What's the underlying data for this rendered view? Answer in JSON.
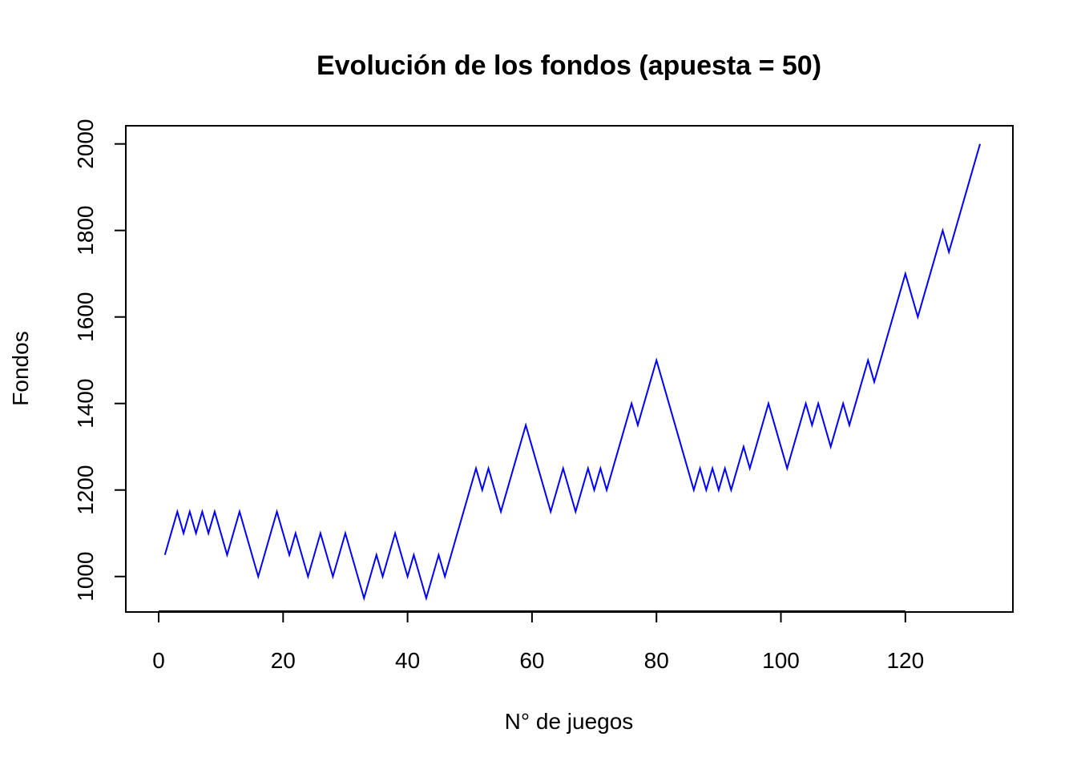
{
  "chart_data": {
    "type": "line",
    "title": "Evolución de los fondos (apuesta = 50)",
    "xlabel": "N° de juegos",
    "ylabel": "Fondos",
    "xlim": [
      -5.28,
      137.28
    ],
    "ylim": [
      918,
      2042
    ],
    "xticks": [
      0,
      20,
      40,
      60,
      80,
      100,
      120
    ],
    "yticks": [
      1000,
      1200,
      1400,
      1600,
      1800,
      2000
    ],
    "grid": false,
    "legend": "none",
    "line_color": "#0000ff",
    "series": [
      {
        "x": [
          1,
          2,
          3,
          4,
          5,
          6,
          7,
          8,
          9,
          10,
          11,
          12,
          13,
          14,
          15,
          16,
          17,
          18,
          19,
          20,
          21,
          22,
          23,
          24,
          25,
          26,
          27,
          28,
          29,
          30,
          31,
          32,
          33,
          34,
          35,
          36,
          37,
          38,
          39,
          40,
          41,
          42,
          43,
          44,
          45,
          46,
          47,
          48,
          49,
          50,
          51,
          52,
          53,
          54,
          55,
          56,
          57,
          58,
          59,
          60,
          61,
          62,
          63,
          64,
          65,
          66,
          67,
          68,
          69,
          70,
          71,
          72,
          73,
          74,
          75,
          76,
          77,
          78,
          79,
          80,
          81,
          82,
          83,
          84,
          85,
          86,
          87,
          88,
          89,
          90,
          91,
          92,
          93,
          94,
          95,
          96,
          97,
          98,
          99,
          100,
          101,
          102,
          103,
          104,
          105,
          106,
          107,
          108,
          109,
          110,
          111,
          112,
          113,
          114,
          115,
          116,
          117,
          118,
          119,
          120,
          121,
          122,
          123,
          124,
          125,
          126,
          127,
          128,
          129,
          130,
          131,
          132
        ],
        "values": [
          1050,
          1100,
          1150,
          1100,
          1150,
          1100,
          1150,
          1100,
          1150,
          1100,
          1050,
          1100,
          1150,
          1100,
          1050,
          1000,
          1050,
          1100,
          1150,
          1100,
          1050,
          1100,
          1050,
          1000,
          1050,
          1100,
          1050,
          1000,
          1050,
          1100,
          1050,
          1000,
          950,
          1000,
          1050,
          1000,
          1050,
          1100,
          1050,
          1000,
          1050,
          1000,
          950,
          1000,
          1050,
          1000,
          1050,
          1100,
          1150,
          1200,
          1250,
          1200,
          1250,
          1200,
          1150,
          1200,
          1250,
          1300,
          1350,
          1300,
          1250,
          1200,
          1150,
          1200,
          1250,
          1200,
          1150,
          1200,
          1250,
          1200,
          1250,
          1200,
          1250,
          1300,
          1350,
          1400,
          1350,
          1400,
          1450,
          1500,
          1450,
          1400,
          1350,
          1300,
          1250,
          1200,
          1250,
          1200,
          1250,
          1200,
          1250,
          1200,
          1250,
          1300,
          1250,
          1300,
          1350,
          1400,
          1350,
          1300,
          1250,
          1300,
          1350,
          1400,
          1350,
          1400,
          1350,
          1300,
          1350,
          1400,
          1350,
          1400,
          1450,
          1500,
          1450,
          1500,
          1550,
          1600,
          1650,
          1700,
          1650,
          1600,
          1650,
          1700,
          1750,
          1800,
          1750,
          1800,
          1850,
          1900,
          1950,
          2000
        ]
      }
    ]
  }
}
